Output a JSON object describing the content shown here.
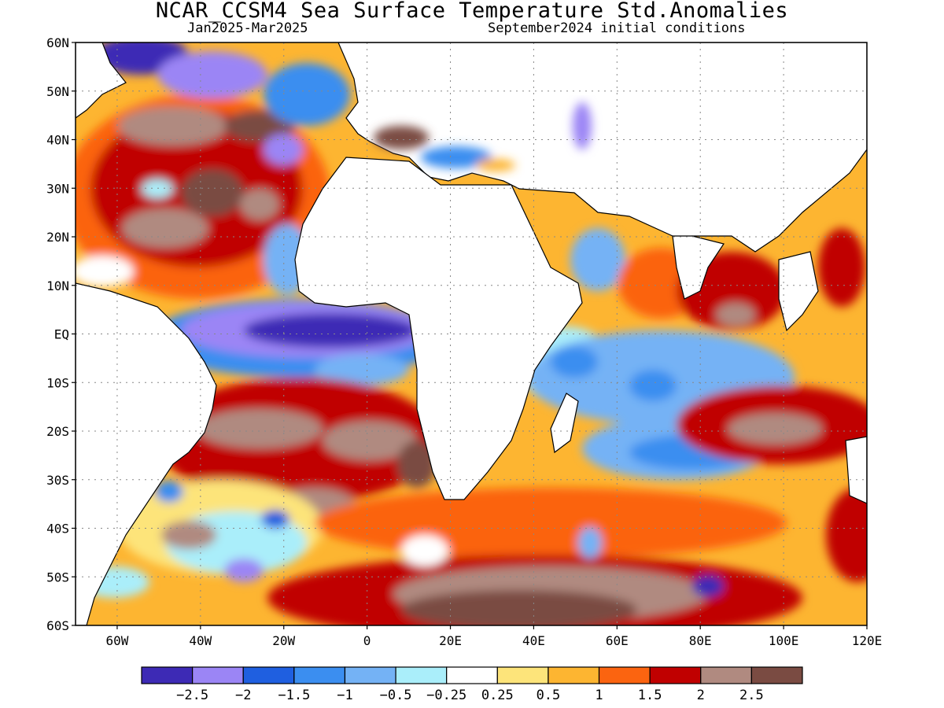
{
  "title": "NCAR_CCSM4 Sea Surface Temperature Std.Anomalies",
  "subtitle_left": "Jan2025-Mar2025",
  "subtitle_right": "September2024 initial conditions",
  "lat_labels": [
    "60N",
    "50N",
    "40N",
    "30N",
    "20N",
    "10N",
    "EQ",
    "10S",
    "20S",
    "30S",
    "40S",
    "50S",
    "60S"
  ],
  "lon_labels": [
    "60W",
    "40W",
    "20W",
    "0",
    "20E",
    "40E",
    "60E",
    "80E",
    "100E",
    "120E"
  ],
  "colorbar": {
    "colors": [
      "#3d2ab5",
      "#9b85f5",
      "#1f5fe0",
      "#3b8ef0",
      "#74b2f5",
      "#aaeefa",
      "#ffffff",
      "#fde47a",
      "#fdb531",
      "#fb6410",
      "#c00000",
      "#b08a80",
      "#7a4b42"
    ],
    "labels": [
      "-2.5",
      "-2",
      "-1.5",
      "-1",
      "-0.5",
      "-0.25",
      "0.25",
      "0.5",
      "1",
      "1.5",
      "2",
      "2.5"
    ]
  }
}
